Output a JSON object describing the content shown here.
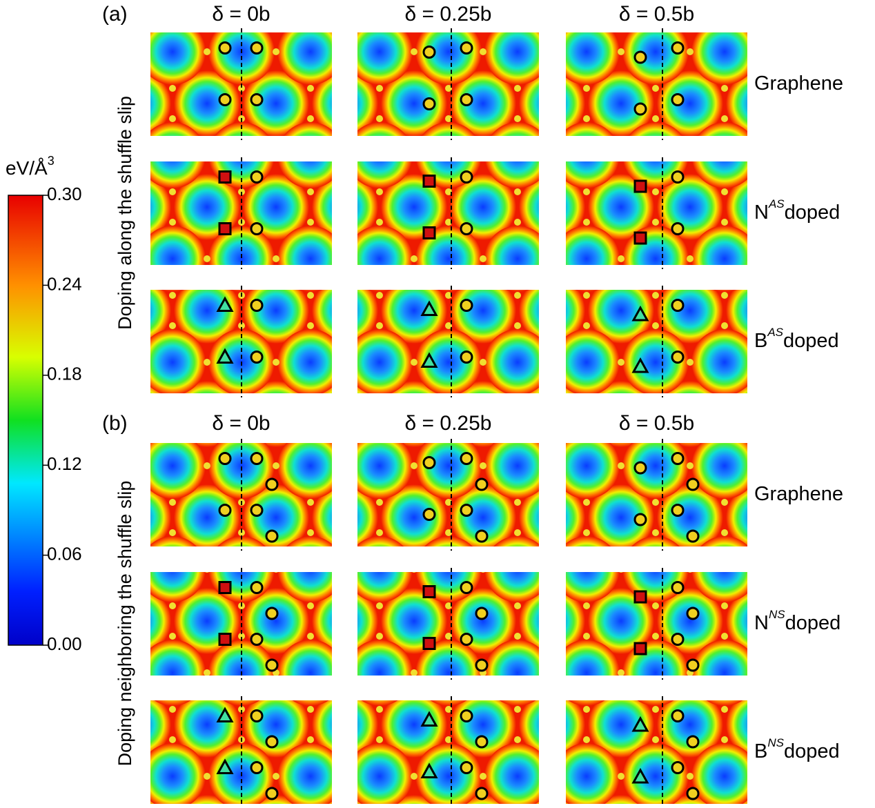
{
  "colorbar": {
    "label": {
      "text": "eV/Å",
      "sup": "3"
    },
    "lim": [
      0,
      0.3
    ],
    "ticks": [
      {
        "value": 0,
        "label": "0.00"
      },
      {
        "value": 0.06,
        "label": "0.06"
      },
      {
        "value": 0.12,
        "label": "0.12"
      },
      {
        "value": 0.18,
        "label": "0.18"
      },
      {
        "value": 0.24,
        "label": "0.24"
      },
      {
        "value": 0.3,
        "label": "0.30"
      }
    ]
  },
  "panels": [
    {
      "label": "(a)",
      "row_title": "Doping along the shuffle slip",
      "columns": [
        "δ = 0b",
        "δ = 0.25b",
        "δ = 0.5b"
      ],
      "rows": [
        {
          "base": "Graphene"
        },
        {
          "base": "N",
          "sup": "AS",
          "text": "doped"
        },
        {
          "base": "B",
          "sup": "AS",
          "text": "doped"
        }
      ]
    },
    {
      "label": "(b)",
      "row_title": "Doping neighboring the shuffle slip",
      "columns": [
        "δ = 0b",
        "δ = 0.25b",
        "δ = 0.5b"
      ],
      "rows": [
        {
          "base": "Graphene"
        },
        {
          "base": "N",
          "sup": "NS",
          "text": "doped"
        },
        {
          "base": "B",
          "sup": "NS",
          "text": "doped"
        }
      ]
    }
  ]
}
